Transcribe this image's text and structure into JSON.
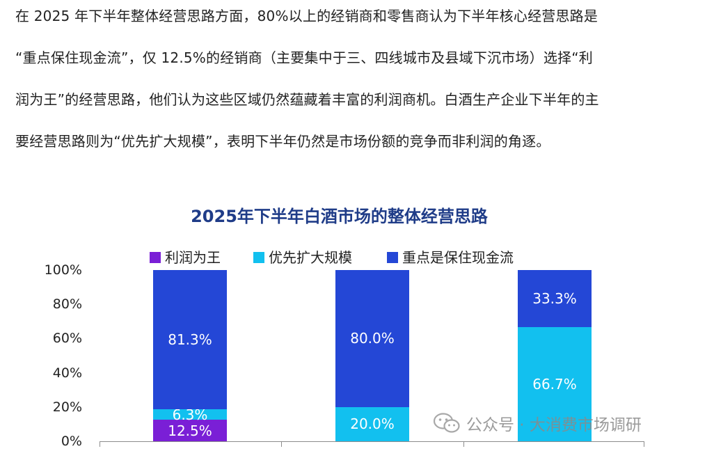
{
  "paragraph": {
    "lines": [
      "在  2025  年下半年整体经营思路方面，80%以上的经销商和零售商认为下半年核心经营思路是",
      "“重点保住现金流”，仅 12.5%的经销商（主要集中于三、四线城市及县域下沉市场）选择“利",
      "润为王”的经营思路，他们认为这些区域仍然蕴藏着丰富的利润商机。白酒生产企业下半年的主",
      "要经营思路则为“优先扩大规模”，表明下半年仍然是市场份额的竞争而非利润的角逐。"
    ]
  },
  "chart_data": {
    "type": "bar",
    "stacked": true,
    "title": "2025年下半年白酒市场的整体经营思路",
    "categories": [
      "",
      "",
      ""
    ],
    "series": [
      {
        "name": "利润为王",
        "color": "#7a1fd6",
        "values": [
          12.5,
          0,
          0
        ],
        "labels": [
          "12.5%",
          "",
          ""
        ]
      },
      {
        "name": "优先扩大规模",
        "color": "#12c0ef",
        "values": [
          6.3,
          20.0,
          66.7
        ],
        "labels": [
          "6.3%",
          "20.0%",
          "66.7%"
        ]
      },
      {
        "name": "重点是保住现金流",
        "color": "#2447d6",
        "values": [
          81.3,
          80.0,
          33.3
        ],
        "labels": [
          "81.3%",
          "80.0%",
          "33.3%"
        ]
      }
    ],
    "ylim": [
      0,
      100
    ],
    "yticks": [
      "0%",
      "20%",
      "40%",
      "60%",
      "80%",
      "100%"
    ],
    "legend_position": "top",
    "grid": false
  },
  "watermark": {
    "icon": "wechat-icon",
    "text": "公众号 · 大消费市场调研"
  }
}
